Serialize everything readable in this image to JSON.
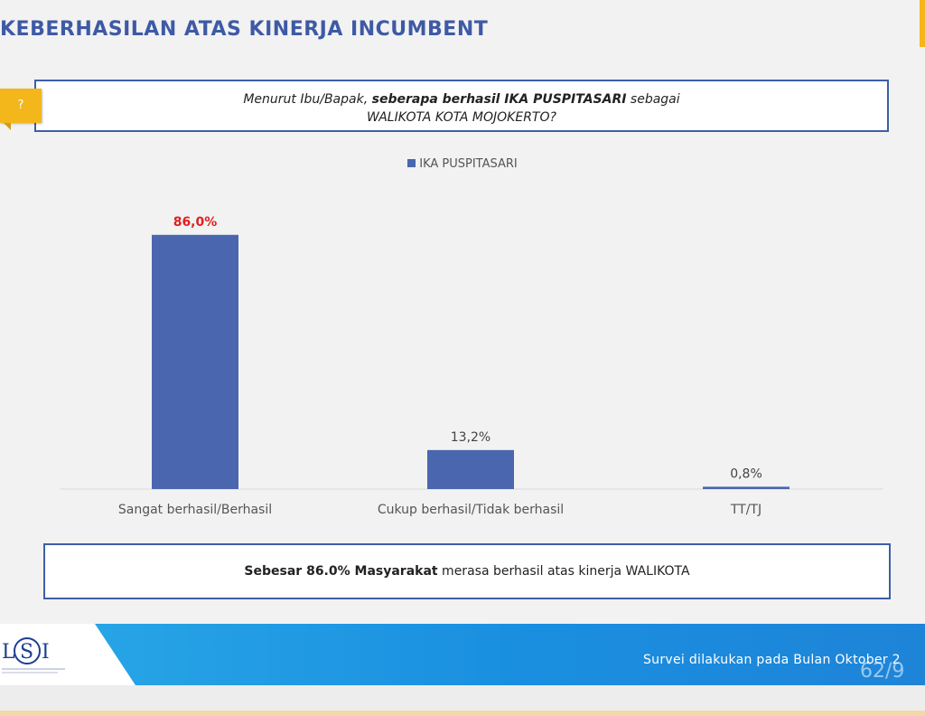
{
  "slide": {
    "title": "KEBERHASILAN ATAS KINERJA INCUMBENT",
    "question_icon": "?",
    "question_line1_pre": "Menurut Ibu/Bapak, ",
    "question_line1_bold": "seberapa berhasil  IKA PUSPITASARI",
    "question_line1_post": " sebagai",
    "question_line2": "WALIKOTA KOTA MOJOKERTO?",
    "summary_bold": "Sebesar 86.0% Masyarakat",
    "summary_rest": " merasa berhasil atas kinerja WALIKOTA",
    "footer_text": "Survei dilakukan pada Bulan Oktober 2",
    "page_number": "62/9",
    "logo_text": "LSI"
  },
  "colors": {
    "title": "#3e5aa5",
    "bar": "#4a66ae",
    "highlight_label": "#e02020",
    "normal_label": "#444444",
    "accent_yellow": "#f3b71c",
    "footer_blue": "#1e8fe0"
  },
  "chart_data": {
    "type": "bar",
    "legend": [
      "IKA PUSPITASARI"
    ],
    "categories": [
      "Sangat berhasil/Berhasil",
      "Cukup berhasil/Tidak berhasil",
      "TT/TJ"
    ],
    "series": [
      {
        "name": "IKA PUSPITASARI",
        "values": [
          86.0,
          13.2,
          0.8
        ]
      }
    ],
    "data_labels": [
      "86,0%",
      "13,2%",
      "0,8%"
    ],
    "highlight_index": 0,
    "ylim": [
      0,
      100
    ],
    "grid": false,
    "legend_position": "top-center"
  }
}
